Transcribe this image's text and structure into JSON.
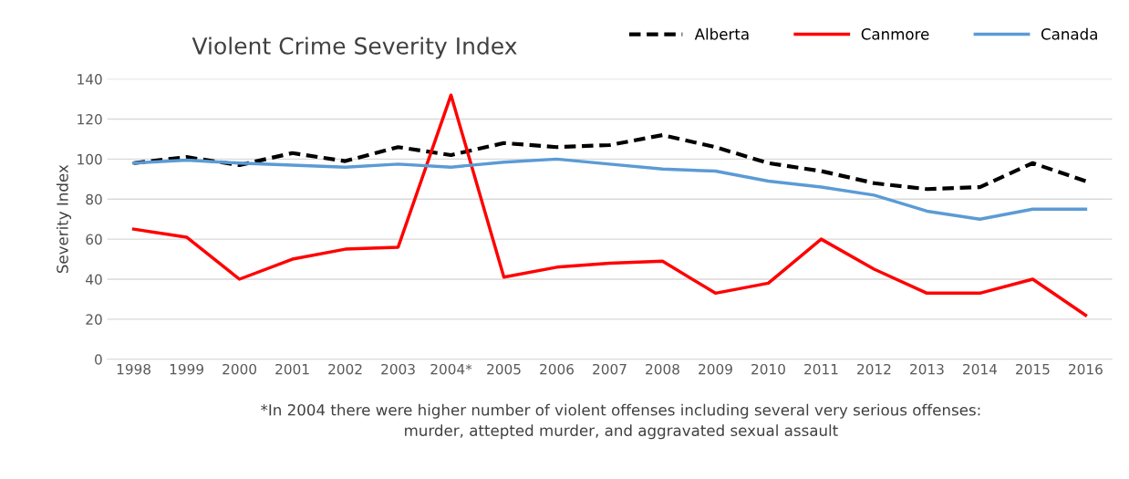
{
  "chart_data": {
    "type": "line",
    "title": "Violent Crime Severity Index",
    "ylabel": "Severity Index",
    "categories": [
      "1998",
      "1999",
      "2000",
      "2001",
      "2002",
      "2003",
      "2004*",
      "2005",
      "2006",
      "2007",
      "2008",
      "2009",
      "2010",
      "2011",
      "2012",
      "2013",
      "2014",
      "2015",
      "2016"
    ],
    "series": [
      {
        "name": "Alberta",
        "color": "#000000",
        "line_style": "dashed",
        "values": [
          98,
          101,
          97,
          103,
          99,
          106,
          102,
          108,
          106,
          107,
          112,
          106,
          98,
          94,
          88,
          85,
          86,
          98,
          89
        ]
      },
      {
        "name": "Canmore",
        "color": "#ff0000",
        "line_style": "solid",
        "values": [
          65,
          61,
          40,
          50,
          55,
          56,
          132,
          41,
          46,
          48,
          49,
          33,
          38,
          60,
          45,
          33,
          33,
          40,
          22
        ]
      },
      {
        "name": "Canada",
        "color": "#5b9bd5",
        "line_style": "solid",
        "values": [
          98,
          99.5,
          98,
          97,
          96,
          97.5,
          96,
          98.5,
          100,
          97.5,
          95,
          94,
          89,
          86,
          82,
          74,
          70,
          75,
          75
        ]
      }
    ],
    "ylim": [
      0,
      140
    ],
    "yticks": [
      0,
      20,
      40,
      60,
      80,
      100,
      120,
      140
    ],
    "grid": "y",
    "legend": "top right",
    "marker": "none",
    "annotations": [
      "*In 2004 there were higher number of violent offenses including several very serious offenses:\nmurder, attepted murder, and aggravated sexual assault"
    ]
  }
}
